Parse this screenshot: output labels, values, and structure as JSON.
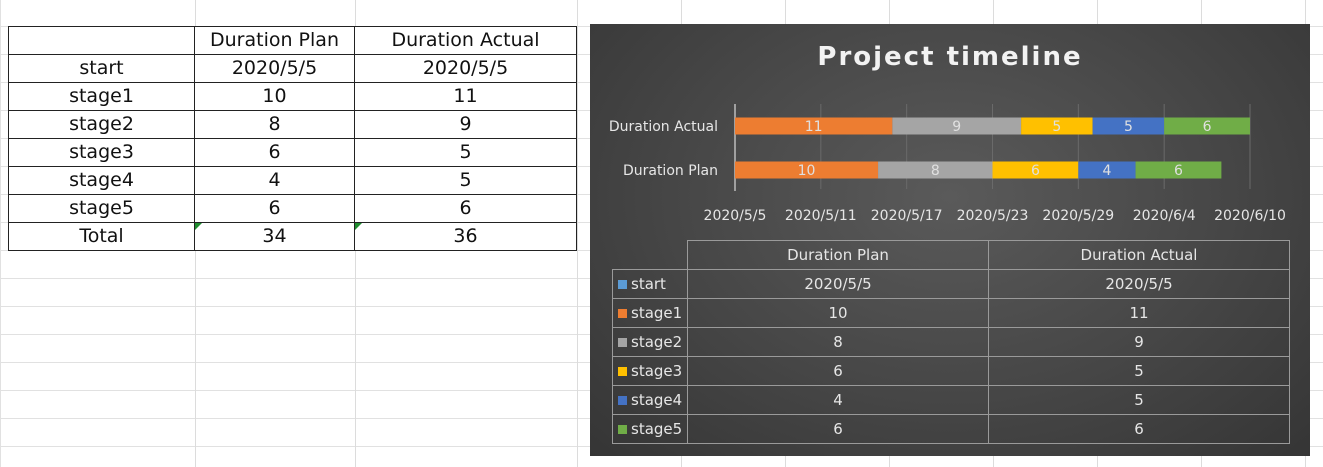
{
  "sheet": {
    "header": [
      "",
      "Duration Plan",
      "Duration Actual"
    ],
    "rows": [
      [
        "start",
        "2020/5/5",
        "2020/5/5"
      ],
      [
        "stage1",
        "10",
        "11"
      ],
      [
        "stage2",
        "8",
        "9"
      ],
      [
        "stage3",
        "6",
        "5"
      ],
      [
        "stage4",
        "4",
        "5"
      ],
      [
        "stage5",
        "6",
        "6"
      ],
      [
        "Total",
        "34",
        "36"
      ]
    ]
  },
  "chart_data": {
    "type": "bar",
    "orientation": "horizontal",
    "stacked": true,
    "title": "Project timeline",
    "categories": [
      "Duration Actual",
      "Duration Plan"
    ],
    "x_axis": {
      "type": "date",
      "min": "2020/5/5",
      "max": "2020/6/10",
      "major_unit_days": 6,
      "tick_labels": [
        "2020/5/5",
        "2020/5/11",
        "2020/5/17",
        "2020/5/23",
        "2020/5/29",
        "2020/6/4",
        "2020/6/10"
      ]
    },
    "grid": true,
    "series": [
      {
        "name": "start",
        "color": "#5b9bd5",
        "values": [
          "2020/5/5",
          "2020/5/5"
        ],
        "visible": false
      },
      {
        "name": "stage1",
        "color": "#ed7d31",
        "values": [
          11,
          10
        ]
      },
      {
        "name": "stage2",
        "color": "#a5a5a5",
        "values": [
          9,
          8
        ]
      },
      {
        "name": "stage3",
        "color": "#ffc000",
        "values": [
          5,
          6
        ]
      },
      {
        "name": "stage4",
        "color": "#4472c4",
        "values": [
          5,
          4
        ]
      },
      {
        "name": "stage5",
        "color": "#70ad47",
        "values": [
          6,
          6
        ]
      }
    ],
    "data_table": {
      "header": [
        "Duration Plan",
        "Duration Actual"
      ],
      "rows": [
        {
          "label": "start",
          "color": "#5b9bd5",
          "plan": "2020/5/5",
          "actual": "2020/5/5"
        },
        {
          "label": "stage1",
          "color": "#ed7d31",
          "plan": "10",
          "actual": "11"
        },
        {
          "label": "stage2",
          "color": "#a5a5a5",
          "plan": "8",
          "actual": "9"
        },
        {
          "label": "stage3",
          "color": "#ffc000",
          "plan": "6",
          "actual": "5"
        },
        {
          "label": "stage4",
          "color": "#4472c4",
          "plan": "4",
          "actual": "5"
        },
        {
          "label": "stage5",
          "color": "#70ad47",
          "plan": "6",
          "actual": "6"
        }
      ]
    }
  }
}
